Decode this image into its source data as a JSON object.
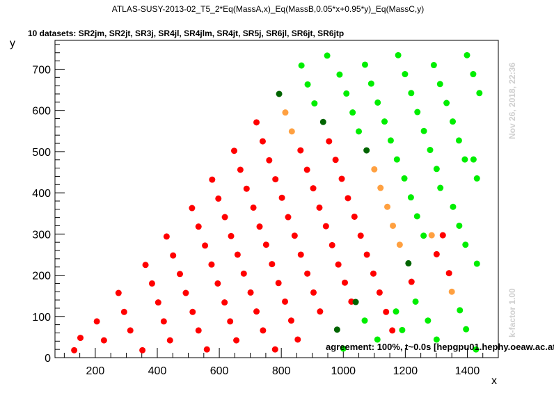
{
  "chart_data": {
    "type": "scatter",
    "title": "ATLAS-SUSY-2013-02_T5_2*Eq(MassA,x)_Eq(MassB,0.05*x+0.95*y)_Eq(MassC,y)",
    "subtitle": "10 datasets: SR2jm, SR2jt, SR3j, SR4jl, SR4jlm, SR4jt, SR5j, SR6jl, SR6jt, SR6jtp",
    "xlabel": "x",
    "ylabel": "y",
    "xlim": [
      70,
      1500
    ],
    "ylim": [
      0,
      770
    ],
    "xticks": [
      200,
      400,
      600,
      800,
      1000,
      1200,
      1400
    ],
    "yticks": [
      0,
      100,
      200,
      300,
      400,
      500,
      600,
      700
    ],
    "timestamp": "Nov 26, 2018, 22:36",
    "kfactor": "k-factor 1.00",
    "agreement": "agreement: 100%, t~0.0s [hepgpu01.hephy.oeaw.ac.at]",
    "colors": {
      "red": "#ff0000",
      "green": "#00ee00",
      "darkgreen": "#006400",
      "orange": "#ffa040"
    },
    "series": [
      {
        "name": "red",
        "color": "#ff0000",
        "points": [
          [
            132,
            18
          ],
          [
            152,
            48
          ],
          [
            205,
            88
          ],
          [
            228,
            42
          ],
          [
            275,
            157
          ],
          [
            293,
            111
          ],
          [
            313,
            66
          ],
          [
            352,
            18
          ],
          [
            362,
            225
          ],
          [
            383,
            180
          ],
          [
            403,
            134
          ],
          [
            421,
            88
          ],
          [
            441,
            42
          ],
          [
            430,
            294
          ],
          [
            451,
            248
          ],
          [
            473,
            203
          ],
          [
            492,
            157
          ],
          [
            514,
            111
          ],
          [
            533,
            66
          ],
          [
            560,
            20
          ],
          [
            512,
            363
          ],
          [
            533,
            318
          ],
          [
            554,
            272
          ],
          [
            575,
            226
          ],
          [
            595,
            180
          ],
          [
            617,
            134
          ],
          [
            635,
            88
          ],
          [
            655,
            42
          ],
          [
            577,
            432
          ],
          [
            597,
            386
          ],
          [
            618,
            341
          ],
          [
            638,
            295
          ],
          [
            659,
            250
          ],
          [
            679,
            204
          ],
          [
            701,
            158
          ],
          [
            720,
            112
          ],
          [
            741,
            66
          ],
          [
            780,
            20
          ],
          [
            648,
            502
          ],
          [
            668,
            456
          ],
          [
            688,
            410
          ],
          [
            710,
            364
          ],
          [
            730,
            318
          ],
          [
            751,
            274
          ],
          [
            770,
            227
          ],
          [
            791,
            181
          ],
          [
            812,
            136
          ],
          [
            832,
            90
          ],
          [
            853,
            44
          ],
          [
            720,
            571
          ],
          [
            740,
            525
          ],
          [
            761,
            479
          ],
          [
            781,
            433
          ],
          [
            802,
            388
          ],
          [
            822,
            341
          ],
          [
            843,
            296
          ],
          [
            863,
            250
          ],
          [
            884,
            204
          ],
          [
            904,
            158
          ],
          [
            925,
            112
          ],
          [
            862,
            503
          ],
          [
            883,
            456
          ],
          [
            903,
            411
          ],
          [
            923,
            364
          ],
          [
            944,
            319
          ],
          [
            964,
            273
          ],
          [
            984,
            226
          ],
          [
            1005,
            182
          ],
          [
            1026,
            136
          ],
          [
            954,
            525
          ],
          [
            975,
            480
          ],
          [
            995,
            434
          ],
          [
            1015,
            387
          ],
          [
            1036,
            342
          ],
          [
            1056,
            296
          ],
          [
            1076,
            250
          ],
          [
            1097,
            204
          ],
          [
            1117,
            158
          ],
          [
            1138,
            111
          ],
          [
            1158,
            66
          ],
          [
            1220,
            184
          ],
          [
            1301,
            251
          ],
          [
            1341,
            205
          ],
          [
            1321,
            297
          ]
        ]
      },
      {
        "name": "green",
        "color": "#00ee00",
        "points": [
          [
            865,
            709
          ],
          [
            885,
            663
          ],
          [
            907,
            617
          ],
          [
            948,
            733
          ],
          [
            988,
            687
          ],
          [
            1010,
            641
          ],
          [
            1030,
            595
          ],
          [
            1050,
            549
          ],
          [
            1070,
            711
          ],
          [
            1090,
            665
          ],
          [
            1111,
            619
          ],
          [
            1133,
            573
          ],
          [
            1153,
            527
          ],
          [
            1173,
            481
          ],
          [
            1177,
            734
          ],
          [
            1199,
            688
          ],
          [
            1219,
            642
          ],
          [
            1239,
            596
          ],
          [
            1260,
            550
          ],
          [
            1280,
            504
          ],
          [
            1301,
            458
          ],
          [
            1197,
            435
          ],
          [
            1218,
            389
          ],
          [
            1238,
            343
          ],
          [
            1259,
            296
          ],
          [
            1292,
            710
          ],
          [
            1312,
            664
          ],
          [
            1333,
            618
          ],
          [
            1353,
            573
          ],
          [
            1373,
            527
          ],
          [
            1392,
            481
          ],
          [
            1313,
            412
          ],
          [
            1354,
            366
          ],
          [
            1374,
            320
          ],
          [
            1394,
            274
          ],
          [
            1399,
            734
          ],
          [
            1419,
            688
          ],
          [
            1439,
            642
          ],
          [
            1420,
            481
          ],
          [
            1431,
            435
          ],
          [
            1431,
            228
          ],
          [
            1069,
            90
          ],
          [
            1110,
            44
          ],
          [
            1170,
            112
          ],
          [
            1190,
            67
          ],
          [
            1233,
            136
          ],
          [
            1273,
            90
          ],
          [
            1301,
            44
          ],
          [
            1376,
            115
          ],
          [
            1396,
            69
          ],
          [
            1428,
            20
          ],
          [
            1000,
            22
          ]
        ]
      },
      {
        "name": "darkgreen",
        "color": "#006400",
        "points": [
          [
            793,
            640
          ],
          [
            935,
            572
          ],
          [
            1075,
            503
          ],
          [
            1210,
            229
          ],
          [
            1040,
            135
          ],
          [
            980,
            68
          ]
        ]
      },
      {
        "name": "orange",
        "color": "#ffa040",
        "points": [
          [
            813,
            595
          ],
          [
            834,
            549
          ],
          [
            1100,
            457
          ],
          [
            1120,
            412
          ],
          [
            1142,
            366
          ],
          [
            1160,
            320
          ],
          [
            1182,
            274
          ],
          [
            1285,
            297
          ],
          [
            1350,
            160
          ]
        ]
      }
    ]
  }
}
